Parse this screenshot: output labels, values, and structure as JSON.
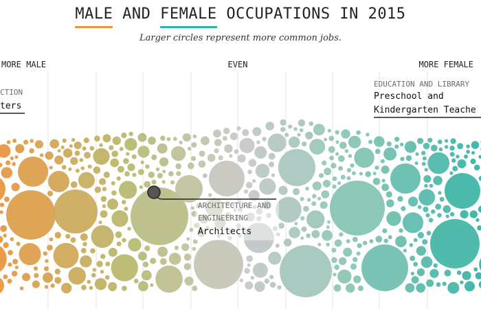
{
  "title": {
    "word_male": "MALE",
    "word_and": "AND",
    "word_female": "FEMALE",
    "rest": "OCCUPATIONS IN 2015"
  },
  "subtitle": "Larger circles represent more common jobs.",
  "colors": {
    "male": "#e8943c",
    "mid_male": "#b5b86d",
    "even": "#c8c8c8",
    "mid_female": "#87c4b3",
    "female": "#2fb1a3",
    "gridline": "#e3e3e3",
    "highlight_dot": "#555555"
  },
  "chart_data": {
    "type": "scatter",
    "title": "MALE AND FEMALE OCCUPATIONS IN 2015",
    "subtitle": "Larger circles represent more common jobs.",
    "scale_labels": {
      "left": "MORE MALE",
      "center": "EVEN",
      "right": "MORE FEMALE"
    },
    "annotations": [
      {
        "category_visible": "CTION",
        "job_visible": "ters",
        "position": "top-left"
      },
      {
        "category": "EDUCATION AND LIBRARY",
        "job_lines": [
          "Preschool and",
          "Kindergarten Teache"
        ],
        "position": "top-right"
      },
      {
        "category_lines": [
          "ARCHITECTURE AND",
          "ENGINEERING"
        ],
        "job": "Architects",
        "position": "center",
        "highlighted": true
      }
    ]
  }
}
